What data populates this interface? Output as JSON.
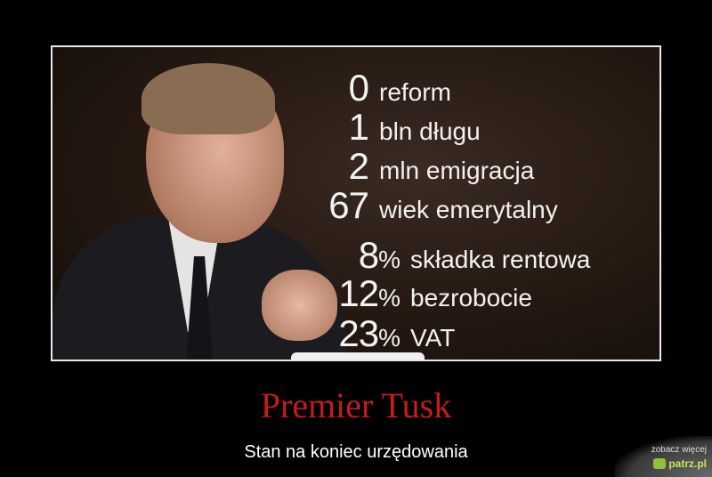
{
  "poster": {
    "stats_block1": [
      {
        "value": "0",
        "label": "reform"
      },
      {
        "value": "1",
        "label": "bln długu"
      },
      {
        "value": "2",
        "label": "mln emigracja"
      },
      {
        "value": "67",
        "label": "wiek emerytalny"
      }
    ],
    "stats_block2": [
      {
        "value": "8",
        "unit": "%",
        "label": "składka rentowa"
      },
      {
        "value": "12",
        "unit": "%",
        "label": "bezrobocie"
      },
      {
        "value": "23",
        "unit": "%",
        "label": "VAT"
      }
    ],
    "title": "Premier Tusk",
    "subtitle": "Stan na koniec urzędowania",
    "title_color": "#c31d1d"
  },
  "watermark": {
    "top": "zobacz więcej",
    "brand": "patrz.pl",
    "icon": "eye-logo-icon"
  }
}
